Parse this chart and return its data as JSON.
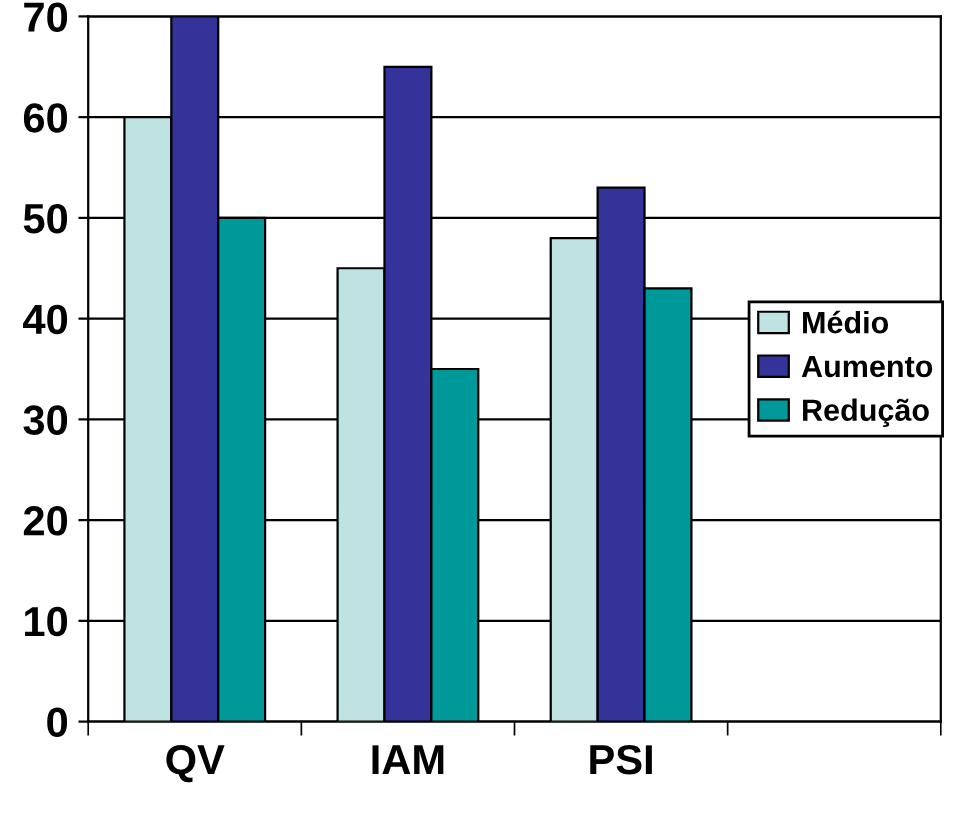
{
  "chart_data": {
    "type": "bar",
    "categories": [
      "QV",
      "IAM",
      "PSI",
      null
    ],
    "series": [
      {
        "name": "Médio",
        "color": "#bfe3e3",
        "values": [
          60,
          45,
          48,
          null
        ]
      },
      {
        "name": "Aumento",
        "color": "#333399",
        "values": [
          70,
          65,
          53,
          null
        ]
      },
      {
        "name": "Redução",
        "color": "#009999",
        "values": [
          50,
          35,
          43,
          null
        ]
      }
    ],
    "ylim": [
      0,
      70
    ],
    "yticks": [
      0,
      10,
      20,
      30,
      40,
      50,
      60,
      70
    ],
    "grid": "y",
    "legend": "right"
  }
}
